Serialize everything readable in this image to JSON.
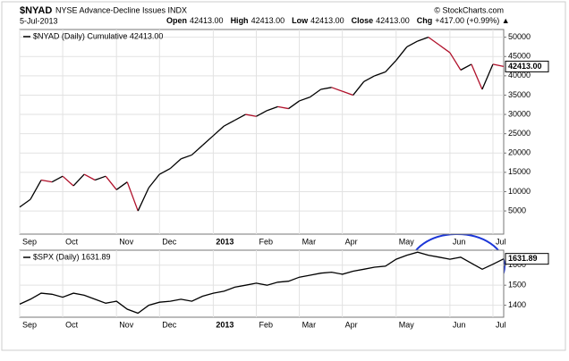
{
  "header": {
    "symbol": "$NYAD",
    "name": "NYSE Advance-Decline Issues INDX",
    "source": "© StockCharts.com",
    "date": "5-Jul-2013",
    "quote": [
      [
        "Open",
        "42413.00"
      ],
      [
        "High",
        "42413.00"
      ],
      [
        "Low",
        "42413.00"
      ],
      [
        "Close",
        "42413.00"
      ],
      [
        "Chg",
        "+417.00 (+0.99%) ▲"
      ]
    ]
  },
  "chart_data": [
    {
      "type": "line",
      "categories": [
        "Sep",
        null,
        null,
        null,
        "Oct",
        null,
        null,
        null,
        null,
        "Nov",
        null,
        null,
        null,
        "Dec",
        null,
        null,
        null,
        null,
        "2013",
        null,
        null,
        null,
        "Feb",
        null,
        null,
        null,
        "Mar",
        null,
        null,
        null,
        "Apr",
        null,
        null,
        null,
        null,
        "May",
        null,
        null,
        null,
        null,
        "Jun",
        null,
        null,
        null,
        "Jul",
        null
      ],
      "series": [
        {
          "name": "$NYAD (Daily) Cumulative 42413.00",
          "color": "#000000",
          "down_color": "#b0102a",
          "values": [
            6000,
            8000,
            13000,
            12500,
            14000,
            11500,
            14500,
            13000,
            14000,
            10500,
            12500,
            5000,
            11000,
            14500,
            16000,
            18500,
            19500,
            22000,
            24500,
            27000,
            28500,
            30000,
            29500,
            31000,
            32000,
            31500,
            33500,
            34500,
            36500,
            37000,
            36000,
            35000,
            38500,
            40000,
            41000,
            44000,
            47500,
            49000,
            50000,
            48000,
            46000,
            41500,
            43000,
            36500,
            43000,
            42413
          ],
          "last_label": "42413.00"
        }
      ],
      "ylim": [
        -1000,
        52000
      ],
      "yticks": [
        5000,
        10000,
        15000,
        20000,
        25000,
        30000,
        35000,
        40000,
        45000,
        50000
      ],
      "grid": true
    },
    {
      "type": "line",
      "categories": [
        "Sep",
        null,
        null,
        null,
        "Oct",
        null,
        null,
        null,
        null,
        "Nov",
        null,
        null,
        null,
        "Dec",
        null,
        null,
        null,
        null,
        "2013",
        null,
        null,
        null,
        "Feb",
        null,
        null,
        null,
        "Mar",
        null,
        null,
        null,
        "Apr",
        null,
        null,
        null,
        null,
        "May",
        null,
        null,
        null,
        null,
        "Jun",
        null,
        null,
        null,
        "Jul",
        null
      ],
      "series": [
        {
          "name": "$SPX (Daily) 1631.89",
          "color": "#000000",
          "values": [
            1405,
            1430,
            1460,
            1455,
            1440,
            1460,
            1450,
            1430,
            1410,
            1420,
            1380,
            1360,
            1400,
            1415,
            1420,
            1430,
            1420,
            1445,
            1460,
            1470,
            1490,
            1500,
            1510,
            1500,
            1515,
            1520,
            1540,
            1550,
            1560,
            1565,
            1555,
            1570,
            1580,
            1590,
            1595,
            1630,
            1650,
            1665,
            1650,
            1640,
            1630,
            1640,
            1610,
            1580,
            1605,
            1631.89
          ],
          "last_label": "1631.89"
        }
      ],
      "ylim": [
        1340,
        1675
      ],
      "yticks": [
        1400,
        1500,
        1600
      ],
      "grid": true
    }
  ]
}
